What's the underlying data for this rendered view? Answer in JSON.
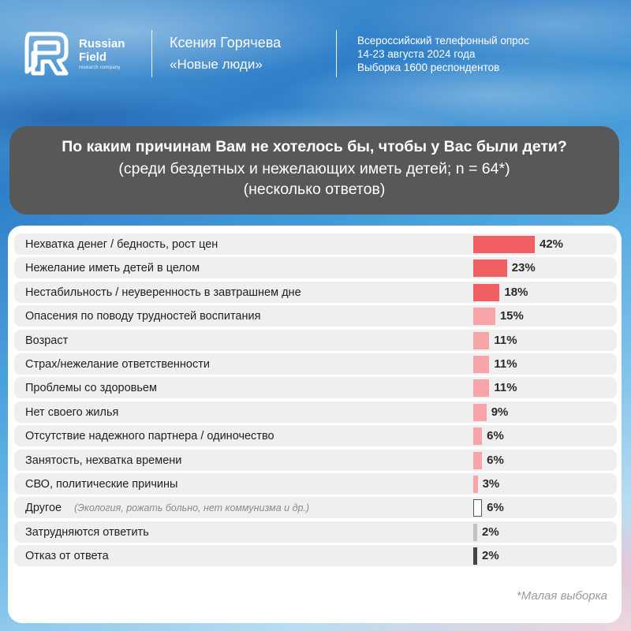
{
  "header": {
    "brand_line1": "Russian",
    "brand_line2": "Field",
    "brand_sub": "research company",
    "author_name": "Ксения Горячева",
    "author_party": "«Новые люди»",
    "survey_line1": "Всероссийский телефонный опрос",
    "survey_line2": "14-23 августа 2024 года",
    "survey_line3": "Выборка 1600 респондентов"
  },
  "question": {
    "line1": "По каким причинам Вам не хотелось бы, чтобы у Вас были дети?",
    "line2": "(среди бездетных и нежелающих иметь детей; n = 64*)",
    "line3": "(несколько ответов)"
  },
  "footnote": "*Малая выборка",
  "colors": {
    "strong": "#f25f62",
    "light": "#f7a4a8",
    "other": "#ffffff",
    "dontknow": "#c2c2c2",
    "refused": "#444444"
  },
  "chart_data": {
    "type": "bar",
    "orientation": "horizontal",
    "unit": "%",
    "xlim": [
      0,
      42
    ],
    "categories": [
      "Нехватка денег / бедность, рост цен",
      "Нежелание иметь детей в целом",
      "Нестабильность / неуверенность в завтрашнем дне",
      "Опасения по поводу трудностей воспитания",
      "Возраст",
      "Страх/нежелание ответственности",
      "Проблемы со здоровьем",
      "Нет своего жилья",
      "Отсутствие надежного партнера / одиночество",
      "Занятость, нехватка времени",
      "СВО, политические причины",
      "Другое",
      "Затрудняются ответить",
      "Отказ от ответа"
    ],
    "notes": [
      "",
      "",
      "",
      "",
      "",
      "",
      "",
      "",
      "",
      "",
      "",
      "(Экология, рожать больно, нет коммунизма и др.)",
      "",
      ""
    ],
    "values": [
      42,
      23,
      18,
      15,
      11,
      11,
      11,
      9,
      6,
      6,
      3,
      6,
      2,
      2
    ],
    "value_labels": [
      "42%",
      "23%",
      "18%",
      "15%",
      "11%",
      "11%",
      "11%",
      "9%",
      "6%",
      "6%",
      "3%",
      "6%",
      "2%",
      "2%"
    ],
    "bar_color_keys": [
      "strong",
      "strong",
      "strong",
      "light",
      "light",
      "light",
      "light",
      "light",
      "light",
      "light",
      "light",
      "other",
      "dontknow",
      "refused"
    ]
  }
}
